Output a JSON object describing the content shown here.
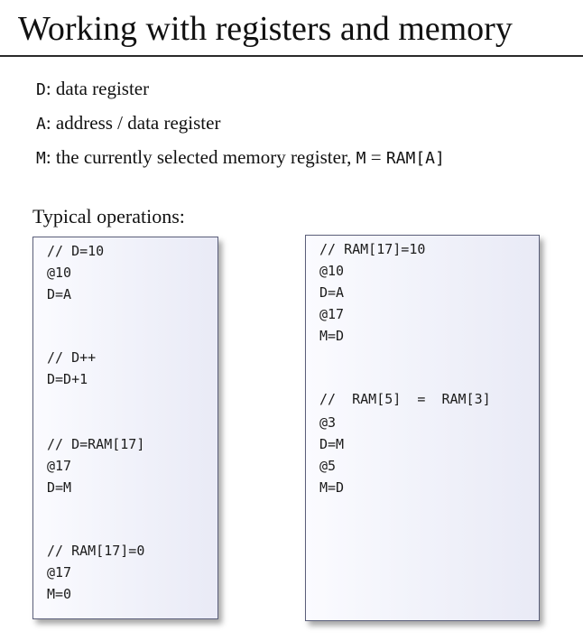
{
  "title": "Working with registers and memory",
  "definitions": [
    {
      "reg": "D",
      "text": ": data register"
    },
    {
      "reg": "A",
      "text": ": address / data register"
    },
    {
      "reg": "M",
      "text": ": the currently selected memory register, ",
      "expr_lhs": "M",
      "expr_eq": " = ",
      "expr_rhs": "RAM[A]"
    }
  ],
  "ops_label": "Typical operations:",
  "left_box": {
    "lines": [
      "// D=10",
      "@10",
      "D=A",
      "// D++",
      "D=D+1",
      "// D=RAM[17]",
      "@17",
      "D=M",
      "// RAM[17]=0",
      "@17",
      "M=0"
    ]
  },
  "right_box": {
    "lines": [
      "// RAM[17]=10",
      "@10",
      "D=A",
      "@17",
      "M=D",
      "//  RAM[5]  =  RAM[3]",
      "@3",
      "D=M",
      "@5",
      "M=D"
    ]
  }
}
